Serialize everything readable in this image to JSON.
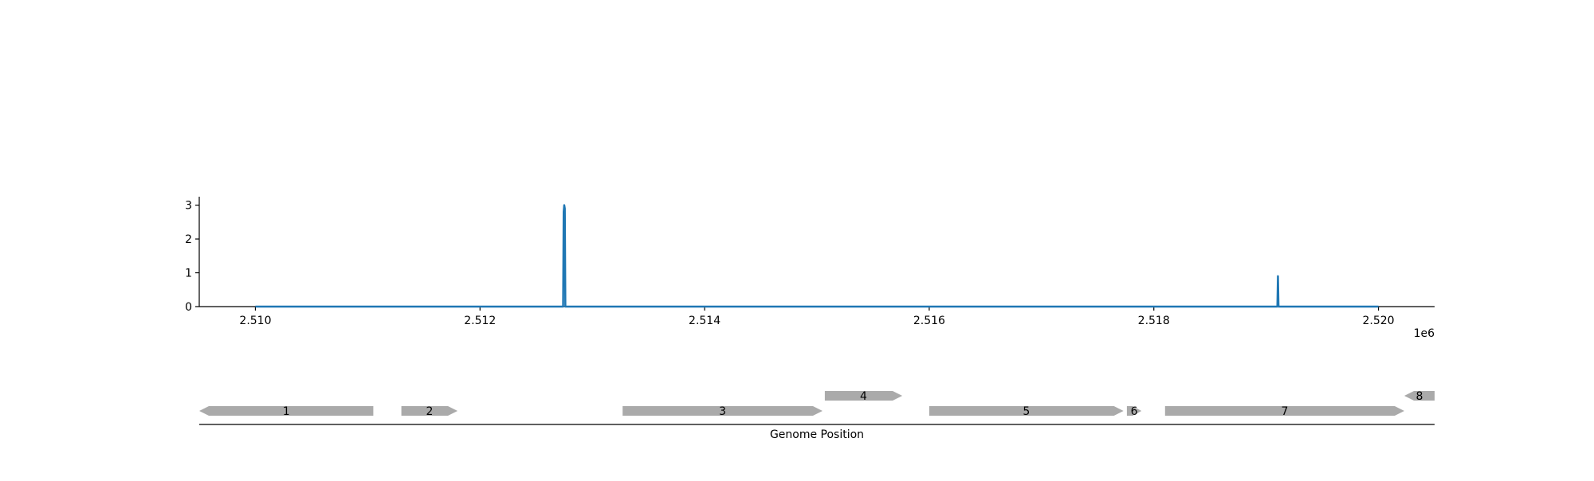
{
  "chart_data": [
    {
      "type": "line",
      "xlim": [
        2509500,
        2520500
      ],
      "ylim": [
        0,
        3.25
      ],
      "x_ticks": [
        2510000,
        2512000,
        2514000,
        2516000,
        2518000,
        2520000
      ],
      "x_tick_labels": [
        "2.510",
        "2.512",
        "2.514",
        "2.516",
        "2.518",
        "2.520"
      ],
      "x_offset_label": "1e6",
      "y_ticks": [
        0,
        1,
        2,
        3
      ],
      "y_tick_labels": [
        "0",
        "1",
        "2",
        "3"
      ],
      "grid": false,
      "color": "#1f77b4",
      "series": [
        {
          "x": [
            2510000,
            2512740,
            2512745,
            2512750,
            2512755,
            2512760,
            2519100,
            2519105,
            2519110,
            2520000
          ],
          "y": [
            0,
            0,
            2.8,
            3.0,
            2.9,
            0,
            0,
            0.9,
            0,
            0
          ]
        }
      ]
    },
    {
      "type": "gene-track",
      "xlim": [
        2509500,
        2520500
      ],
      "xlabel": "Genome Position",
      "color": "#aaaaaa",
      "genes": [
        {
          "label": "1",
          "start": 2509500,
          "end": 2511050,
          "strand": "-",
          "row": 0
        },
        {
          "label": "2",
          "start": 2511300,
          "end": 2511800,
          "strand": "+",
          "row": 0
        },
        {
          "label": "3",
          "start": 2513270,
          "end": 2515050,
          "strand": "+",
          "row": 0
        },
        {
          "label": "4",
          "start": 2515070,
          "end": 2515760,
          "strand": "+",
          "row": 1
        },
        {
          "label": "5",
          "start": 2516000,
          "end": 2517730,
          "strand": "+",
          "row": 0
        },
        {
          "label": "6",
          "start": 2517760,
          "end": 2517890,
          "strand": "+",
          "row": 0
        },
        {
          "label": "7",
          "start": 2518100,
          "end": 2520230,
          "strand": "+",
          "row": 0
        },
        {
          "label": "8",
          "start": 2520230,
          "end": 2520500,
          "strand": "-",
          "row": 1
        }
      ]
    }
  ]
}
